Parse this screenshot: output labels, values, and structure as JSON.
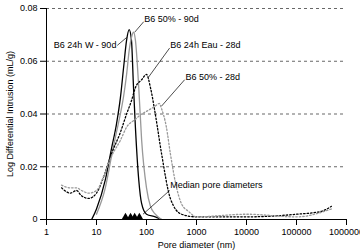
{
  "chart_data": {
    "type": "line",
    "x_label": "Pore diameter (nm)",
    "y_label": "Log Differential Intrusion (mL/g)",
    "log": "x",
    "grid": true,
    "xlim": [
      1,
      1000000
    ],
    "xticks": [
      1,
      10,
      100,
      1000,
      10000,
      100000,
      1000000
    ],
    "ylim": [
      0,
      0.08
    ],
    "yticks": [
      0,
      0.02,
      0.04,
      0.06,
      0.08
    ],
    "series": [
      {
        "name": "B6 24h W - 90d",
        "color": "#000000",
        "line_style": "solid",
        "marker": "none",
        "x": [
          8,
          10,
          15,
          20,
          25,
          30,
          35,
          40,
          45,
          50,
          55,
          60,
          70,
          80,
          100,
          150,
          200
        ],
        "values": [
          0,
          0.004,
          0.015,
          0.027,
          0.036,
          0.046,
          0.058,
          0.068,
          0.072,
          0.068,
          0.05,
          0.035,
          0.015,
          0.006,
          0.002,
          0.001,
          0
        ]
      },
      {
        "name": "B6 50% - 90d",
        "color": "#999999",
        "line_style": "solid",
        "marker": "none",
        "x": [
          10,
          15,
          20,
          25,
          30,
          35,
          40,
          45,
          50,
          55,
          60,
          70,
          80,
          100,
          120,
          150,
          200
        ],
        "values": [
          0.002,
          0.012,
          0.024,
          0.033,
          0.04,
          0.047,
          0.055,
          0.064,
          0.069,
          0.071,
          0.068,
          0.05,
          0.03,
          0.012,
          0.005,
          0.002,
          0
        ]
      },
      {
        "name": "B6 24h Eau - 28d",
        "color": "#000000",
        "line_style": "dotted",
        "marker": "none",
        "x": [
          2,
          3,
          4,
          5,
          7,
          10,
          15,
          20,
          30,
          40,
          50,
          60,
          80,
          100,
          120,
          150,
          200,
          300,
          500,
          1000,
          10000,
          100000,
          300000,
          500000
        ],
        "values": [
          0.012,
          0.01,
          0.011,
          0.009,
          0.008,
          0.01,
          0.018,
          0.025,
          0.033,
          0.04,
          0.045,
          0.05,
          0.053,
          0.055,
          0.05,
          0.04,
          0.025,
          0.008,
          0.002,
          0.001,
          0.001,
          0.002,
          0.003,
          0.005
        ]
      },
      {
        "name": "B6 50% - 28d",
        "color": "#999999",
        "line_style": "dotted",
        "marker": "none",
        "x": [
          2,
          3,
          4,
          5,
          7,
          10,
          15,
          20,
          30,
          40,
          60,
          80,
          100,
          150,
          180,
          200,
          250,
          300,
          400,
          500,
          700,
          1000,
          10000,
          100000,
          500000
        ],
        "values": [
          0.013,
          0.012,
          0.012,
          0.011,
          0.01,
          0.011,
          0.018,
          0.024,
          0.03,
          0.035,
          0.038,
          0.04,
          0.041,
          0.043,
          0.044,
          0.042,
          0.035,
          0.025,
          0.012,
          0.006,
          0.003,
          0.001,
          0.002,
          0.001,
          0.004
        ]
      }
    ],
    "median_pore_diameters": {
      "label": "Median pore diameters",
      "x": [
        38,
        48,
        58,
        72
      ],
      "marker": "triangle",
      "color": "#000000"
    }
  }
}
